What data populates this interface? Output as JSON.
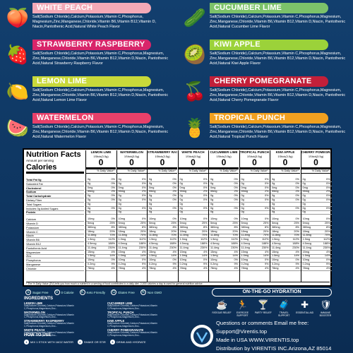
{
  "flavors": [
    {
      "name": "WHITE PEACH",
      "color": "#f3a9b7",
      "icon": "peach-icon",
      "glyph": "🍑",
      "desc": "Salt(Sodium Chloride),Calcium,Potassium,Vitamin C,Phosphorus, Magnesium,Zinc,Manganese,Chloride,Vitamin B6,Vitamin B12,Vitamin D, Niacin,Pantothenic Acid,Natural White Peach Flavor"
    },
    {
      "name": "CUCUMBER LIME",
      "color": "#7cc26a",
      "icon": "cucumber-icon",
      "glyph": "🥒",
      "desc": "Salt(Sodium Chloride),Calcium,Potassium,Vitamin C,Phosphorus,Magnesium, Zinc,Manganese,Chloride,Vitamin B6,Vitamin B12,Vitamin D,Niacin, Pantothenic Acid,Natural Cucumber Lime Flavor"
    },
    {
      "name": "STRAWBERRY RASPBERRY",
      "color": "#d8256a",
      "icon": "strawberry-icon",
      "glyph": "🍓",
      "desc": "Salt(Sodium Chloride),Calcium,Potassium,Vitamin C,Phosphorus,Magnesium, Zinc,Manganese,Chloride,Vitamin B6,Vitamin B12,Vitamin D,Niacin, Pantothenic Acid,Natural Strawberry Raspberry Flavor"
    },
    {
      "name": "KIWI APPLE",
      "color": "#9bd23a",
      "icon": "kiwi-icon",
      "glyph": "🥝",
      "desc": "Salt(Sodium Chloride),Calcium,Potassium,Vitamin C,Phosphorus,Magnesium, Zinc,Manganese,Chloride,Vitamin B6,Vitamin B12,Vitamin D,Niacin, Pantothenic Acid,Natural Kiwi Apple Flavor"
    },
    {
      "name": "LEMON LIME",
      "color": "#c8d93a",
      "icon": "lemon-icon",
      "glyph": "🍋",
      "desc": "Salt(Sodium Chloride),Calcium,Potassium,Vitamin C,Phosphorus,Magnesium, Zinc,Manganese,Chloride,Vitamin B6,Vitamin B12,Vitamin D,Niacin, Pantothenic Acid,Natural Lemon Lime Flavor"
    },
    {
      "name": "CHERRY POMEGRANATE",
      "color": "#c2203a",
      "icon": "cherry-icon",
      "glyph": "🍒",
      "desc": "Salt(Sodium Chloride),Calcium,Potassium,Vitamin C,Phosphorus,Magnesium, Zinc,Manganese,Chloride,Vitamin B6,Vitamin B12,Vitamin D,Niacin, Pantothenic Acid,Natural Cherry Pomegranate Flavor"
    },
    {
      "name": "WATERMELON",
      "color": "#e8406a",
      "icon": "watermelon-icon",
      "glyph": "🍉",
      "desc": "Salt(Sodium Chloride),Calcium,Potassium,Vitamin C,Phosphorus,Magnesium, Zinc,Manganese,Chloride,Vitamin B6,Vitamin B12,Vitamin D,Niacin, Pantothenic Acid,Natural Watermelon Flavor"
    },
    {
      "name": "TROPICAL PUNCH",
      "color": "#f0a020",
      "icon": "pineapple-icon",
      "glyph": "🍍",
      "desc": "Salt(Sodium Chloride),Calcium,Potassium,Vitamin C,Phosphorus,Magnesium, Zinc,Manganese,Chloride,Vitamin B6,Vitamin B12,Vitamin D,Niacin, Pantothenic Acid,Natural Tropical Punch Flavor"
    }
  ],
  "nutrition": {
    "title": "Nutrition Facts",
    "serving": "Amount per serving",
    "calories_label": "Calories",
    "dv_header": "% Daily Value*",
    "rows": [
      {
        "label": "Total Fat 0g",
        "bold": true
      },
      {
        "label": "Saturated Fat",
        "bold": false
      },
      {
        "label": "Cholesterol",
        "bold": true
      },
      {
        "label": "Sodium",
        "bold": true
      },
      {
        "label": "Total Carbohydrate",
        "bold": true
      },
      {
        "label": "Dietary Fiber",
        "bold": false
      },
      {
        "label": "Total Sugars",
        "bold": false
      },
      {
        "label": "Includes 0g Added Sugars",
        "bold": false
      },
      {
        "label": "Protein",
        "bold": true
      },
      {
        "label": "Calcium",
        "bold": false
      },
      {
        "label": "Vitamin D",
        "bold": false
      },
      {
        "label": "Potassium",
        "bold": false
      },
      {
        "label": "Vitamin C",
        "bold": false
      },
      {
        "label": "Niacin",
        "bold": false
      },
      {
        "label": "Vitamin B6",
        "bold": false
      },
      {
        "label": "Vitamin B12",
        "bold": false
      },
      {
        "label": "Pantothenic Acid",
        "bold": false
      },
      {
        "label": "Magnesium",
        "bold": false
      },
      {
        "label": "Zinc",
        "bold": false
      },
      {
        "label": "Phosphorus",
        "bold": false
      },
      {
        "label": "Manganese",
        "bold": false
      },
      {
        "label": "Chloride",
        "bold": false
      }
    ],
    "columns": [
      {
        "name": "LEMON LIME",
        "serving": "1Stick(3.5g)",
        "calories": "0"
      },
      {
        "name": "WATERMELON",
        "serving": "1Stick(3.5g)",
        "calories": "0"
      },
      {
        "name": "STRAWBERRY RASPBERRY",
        "serving": "1Stick(3.5g)",
        "calories": "0"
      },
      {
        "name": "WHITE PEACH",
        "serving": "1Stick(3.5g)",
        "calories": "0"
      },
      {
        "name": "CUCUMBER LIME",
        "serving": "1Stick(3.5g)",
        "calories": "0"
      },
      {
        "name": "TROPICAL PUNCH",
        "serving": "1Stick(3.5g)",
        "calories": "0"
      },
      {
        "name": "KIWI APPLE",
        "serving": "1Stick(3.5g)",
        "calories": "0"
      },
      {
        "name": "CHERRY POMEGRANATE",
        "serving": "1Stick(3.5g)",
        "calories": "0"
      }
    ],
    "values": [
      [
        "0g",
        "0%"
      ],
      [
        "0g",
        "0%"
      ],
      [
        "0mg",
        "0%"
      ],
      [
        "55mg",
        "2%"
      ],
      [
        "0g",
        "0%"
      ],
      [
        "0g",
        "0%"
      ],
      [
        "0g",
        ""
      ],
      [
        "0g",
        "0%"
      ],
      [
        "0g",
        ""
      ],
      [
        "10mg",
        "0%"
      ],
      [
        "5mcg",
        "25%"
      ],
      [
        "380mg",
        "8%"
      ],
      [
        "18mg",
        "20%"
      ],
      [
        "11.8mg",
        "70%"
      ],
      [
        "1.9mg",
        "112%"
      ],
      [
        "4.5mcg",
        "188%"
      ],
      [
        "11.4mg",
        "230%"
      ],
      [
        "15mg",
        "4%"
      ],
      [
        "1.5mg",
        "14%"
      ],
      [
        "10mg",
        "0%"
      ],
      [
        "0.2mg",
        "9%"
      ],
      [
        "78mg",
        "4%"
      ]
    ],
    "footnote": "* The % Daily Value (DV) tells you how much a nutrient in a serving of food contributes to a daily diet. 2,000 calories a day is used for general nutrition advice."
  },
  "badges": [
    {
      "icon": "sugar-free-icon",
      "label": "Sugar Free",
      "glyph": "S"
    },
    {
      "icon": "zero-calorie-icon",
      "label": "0 Calorie",
      "glyph": "0"
    },
    {
      "icon": "keto-friendly-icon",
      "label": "Keto Friendly",
      "glyph": "K"
    },
    {
      "icon": "gluten-free-icon",
      "label": "Gluten Free",
      "glyph": "G"
    },
    {
      "icon": "non-gmo-icon",
      "label": "Non GMO",
      "glyph": "N"
    }
  ],
  "ingredients": {
    "title": "INGREDIENTS",
    "items": [
      {
        "name": "LEMON LIME",
        "text": "Salt(Sodium Chloride),Calcium,Potassium,Vitamin C,Phosphorus,Magnesium,Zinc..."
      },
      {
        "name": "CUCUMBER LIME",
        "text": "Salt(Sodium Chloride),Calcium,Potassium,Vitamin C,Phosphorus,Magnesium,Zinc..."
      },
      {
        "name": "WATERMELON",
        "text": "Salt(Sodium Chloride),Calcium,Potassium,Vitamin C,Phosphorus,Magnesium,Zinc..."
      },
      {
        "name": "TROPICAL PUNCH",
        "text": "Salt(Sodium Chloride),Calcium,Potassium,Vitamin C,Phosphorus,Magnesium,Zinc..."
      },
      {
        "name": "STRAWBERRY RASPBERRY",
        "text": "Salt(Sodium Chloride),Calcium,Potassium,Vitamin C,Phosphorus,Magnesium,Zinc..."
      },
      {
        "name": "KIWI APPLE",
        "text": "Salt(Sodium Chloride),Calcium,Potassium,Vitamin C,Phosphorus,Magnesium,Zinc..."
      },
      {
        "name": "WHITE PEACH",
        "text": "Salt(Sodium Chloride),Calcium,Potassium,Vitamin C,Phosphorus,Magnesium,Zinc..."
      },
      {
        "name": "CHERRY POMEGRANATE",
        "text": "Salt(Sodium Chloride),Calcium,Potassium,Vitamin C,Phosphorus,Magnesium,Zinc..."
      }
    ]
  },
  "howto": {
    "title": "HOW TO USE",
    "steps": [
      {
        "num": "1",
        "label": "MIX 1 STICK WITH 16OZ WATER"
      },
      {
        "num": "2",
        "label": "SHAKE OR STIR"
      },
      {
        "num": "3",
        "label": "DRINK AND HYDRATE"
      }
    ]
  },
  "onthego": "ON-THE-GO HYDRATION",
  "benefits": [
    {
      "icon": "fatigue-relief-icon",
      "label": "FATIGUE RELIEF",
      "glyph": "☕"
    },
    {
      "icon": "exercise-support-icon",
      "label": "EXERCISE SUPPORT",
      "glyph": "🏃"
    },
    {
      "icon": "party-relief-icon",
      "label": "PARTY RELIEF",
      "glyph": "🍸"
    },
    {
      "icon": "travel-support-icon",
      "label": "TRAVEL SUPPORT",
      "glyph": "🧳"
    },
    {
      "icon": "essential-aid-icon",
      "label": "ESSENTIAL AID",
      "glyph": "✚"
    },
    {
      "icon": "immune-booster-icon",
      "label": "IMMUNE BOOSTER",
      "glyph": "🛡"
    }
  ],
  "contact": {
    "line1": "Questions or comments Email me free:",
    "line2": "Support@Virentis.top",
    "line3": "Made in USA  WWW.VIRENTIS.top",
    "line4": "Distribution by VIRENTIS INC.Arizona,AZ 85014"
  }
}
